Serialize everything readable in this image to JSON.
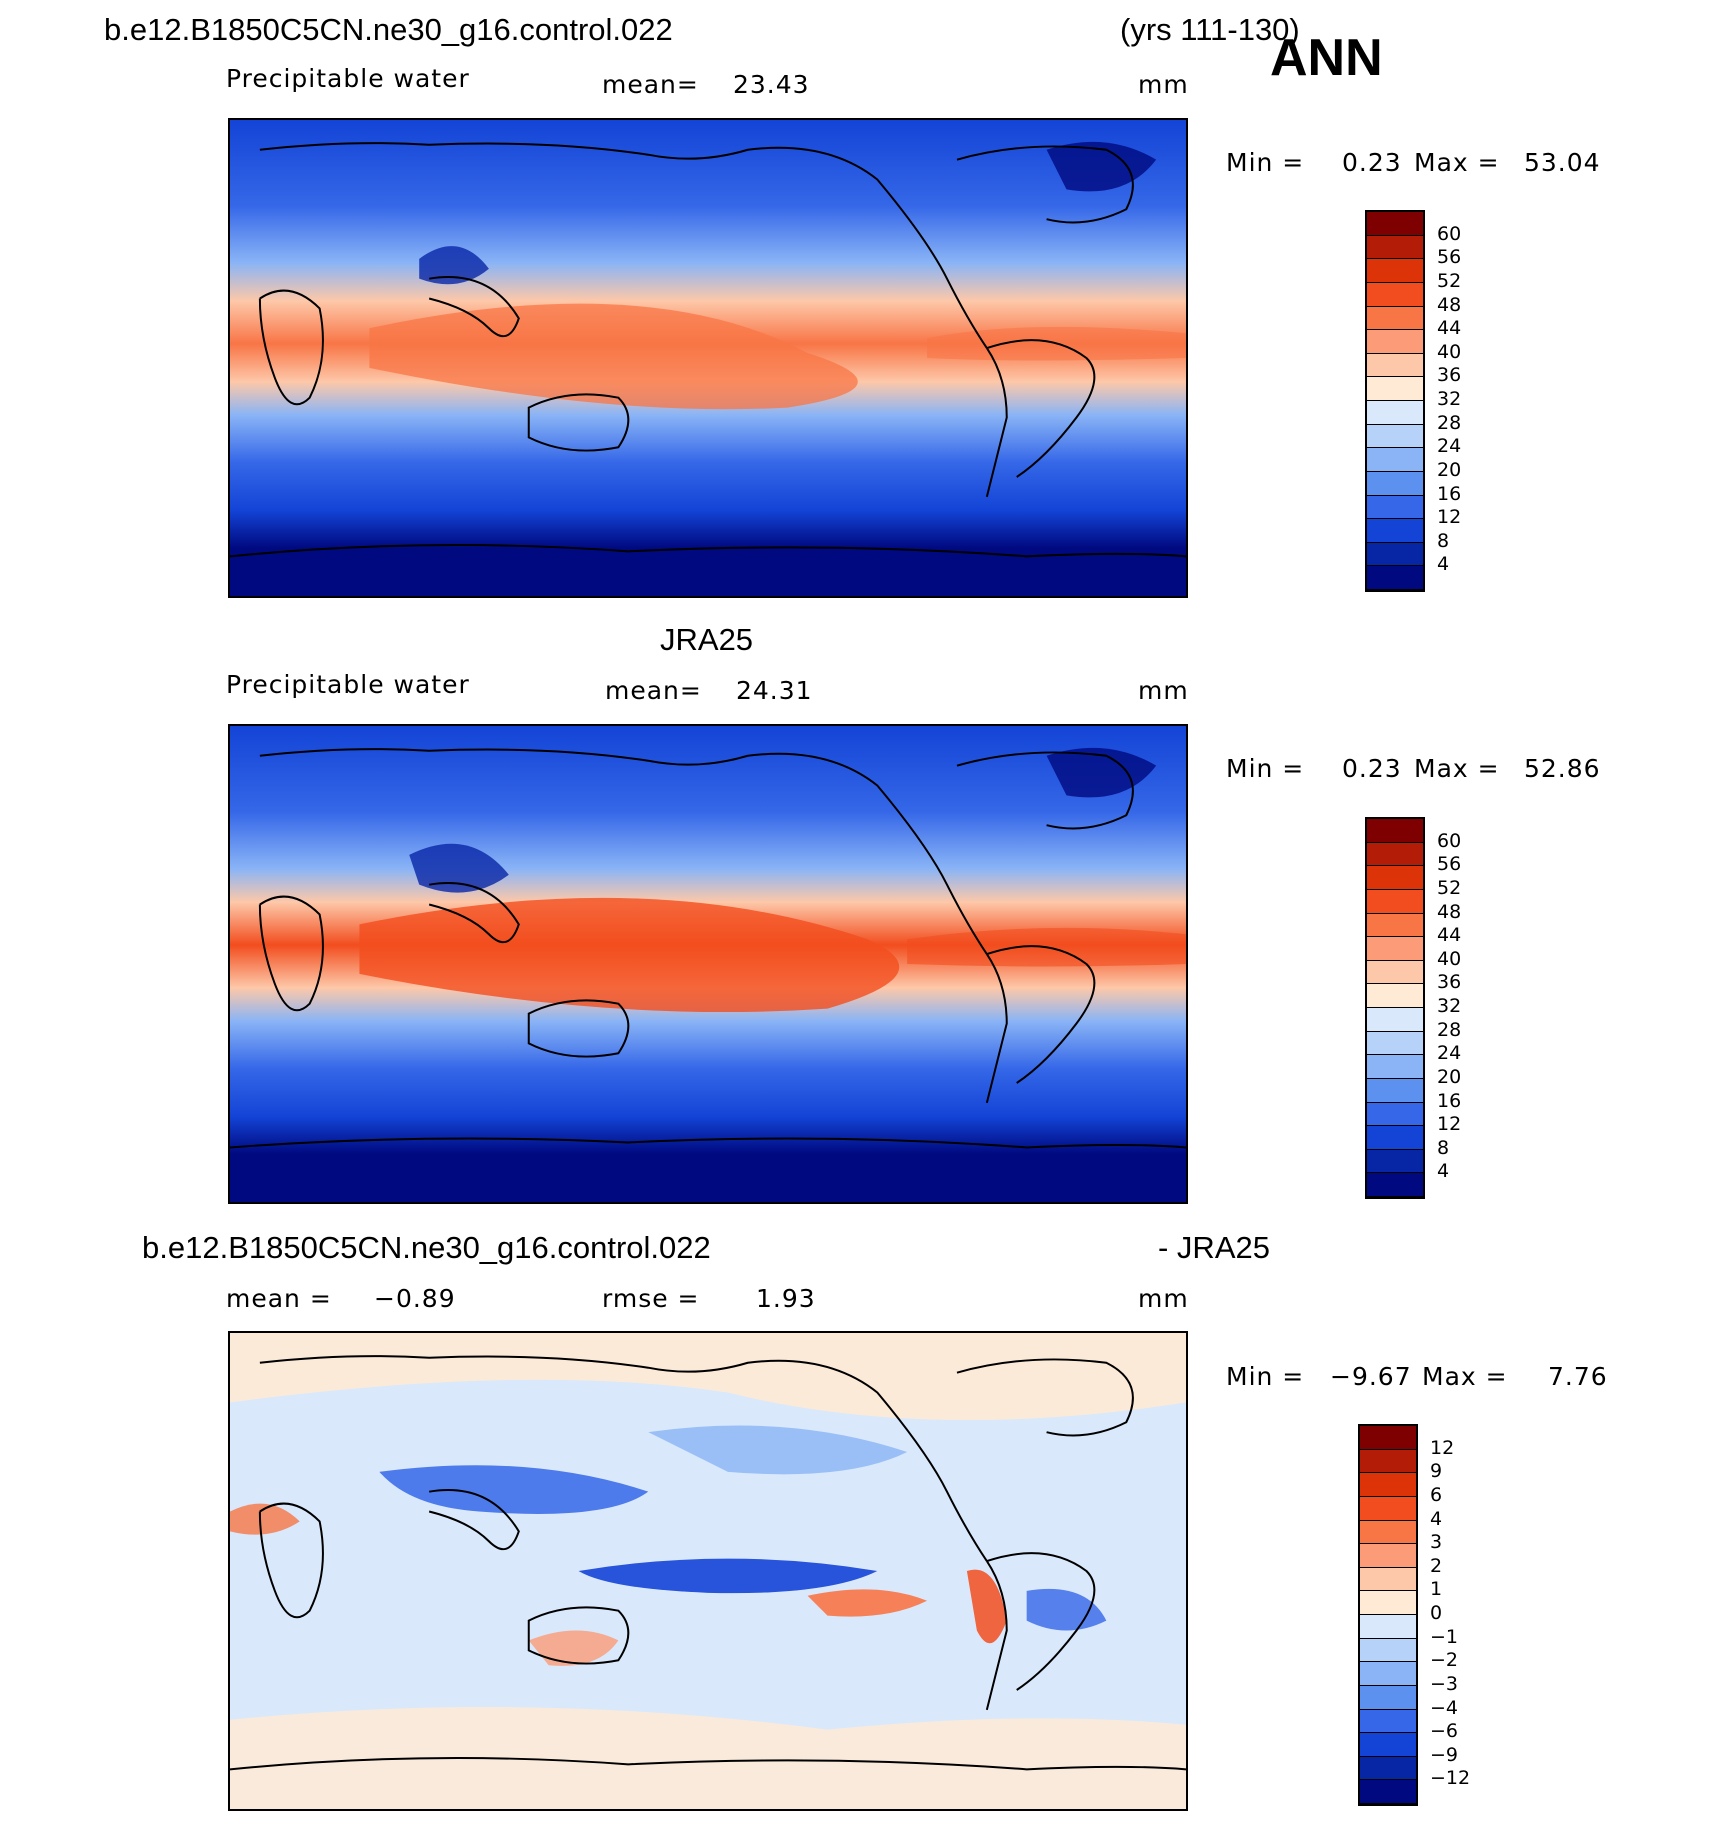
{
  "header": {
    "case_name": "b.e12.B1850C5CN.ne30_g16.control.022",
    "years": "(yrs 111-130)",
    "season": "ANN"
  },
  "panels": [
    {
      "title": "",
      "variable": "Precipitable  water",
      "mean_label": "mean=",
      "mean_value": "23.43",
      "units": "mm",
      "min_label": "Min =",
      "min_value": "0.23",
      "max_label": "Max =",
      "max_value": "53.04",
      "levels": [
        "60",
        "56",
        "52",
        "48",
        "44",
        "40",
        "36",
        "32",
        "28",
        "24",
        "20",
        "16",
        "12",
        "8",
        "4"
      ],
      "colors": [
        "#7f0000",
        "#b31c06",
        "#dc3308",
        "#f24d1e",
        "#f87546",
        "#fb9b77",
        "#fdc8a9",
        "#ffead5",
        "#d9e9fb",
        "#b6d2f8",
        "#8ab4f6",
        "#5c91f0",
        "#3567e8",
        "#1344d6",
        "#0726a6",
        "#00097f"
      ]
    },
    {
      "title": "JRA25",
      "variable": "Precipitable  water",
      "mean_label": "mean=",
      "mean_value": "24.31",
      "units": "mm",
      "min_label": "Min =",
      "min_value": "0.23",
      "max_label": "Max =",
      "max_value": "52.86",
      "levels": [
        "60",
        "56",
        "52",
        "48",
        "44",
        "40",
        "36",
        "32",
        "28",
        "24",
        "20",
        "16",
        "12",
        "8",
        "4"
      ],
      "colors": [
        "#7f0000",
        "#b31c06",
        "#dc3308",
        "#f24d1e",
        "#f87546",
        "#fb9b77",
        "#fdc8a9",
        "#ffead5",
        "#d9e9fb",
        "#b6d2f8",
        "#8ab4f6",
        "#5c91f0",
        "#3567e8",
        "#1344d6",
        "#0726a6",
        "#00097f"
      ]
    },
    {
      "title": "b.e12.B1850C5CN.ne30_g16.control.022",
      "title_right": "- JRA25",
      "mean_label": "mean =",
      "mean_value": "−0.89",
      "rmse_label": "rmse =",
      "rmse_value": "1.93",
      "units": "mm",
      "min_label": "Min =",
      "min_value": "−9.67",
      "max_label": "Max =",
      "max_value": "7.76",
      "levels": [
        "12",
        "9",
        "6",
        "4",
        "3",
        "2",
        "1",
        "0",
        "−1",
        "−2",
        "−3",
        "−4",
        "−6",
        "−9",
        "−12"
      ],
      "colors": [
        "#7f0000",
        "#b31c06",
        "#dc3308",
        "#f24d1e",
        "#f87546",
        "#fb9b77",
        "#fdc8a9",
        "#ffead5",
        "#d9e9fb",
        "#b6d2f8",
        "#8ab4f6",
        "#5c91f0",
        "#3567e8",
        "#1344d6",
        "#0726a6",
        "#00097f"
      ]
    }
  ]
}
